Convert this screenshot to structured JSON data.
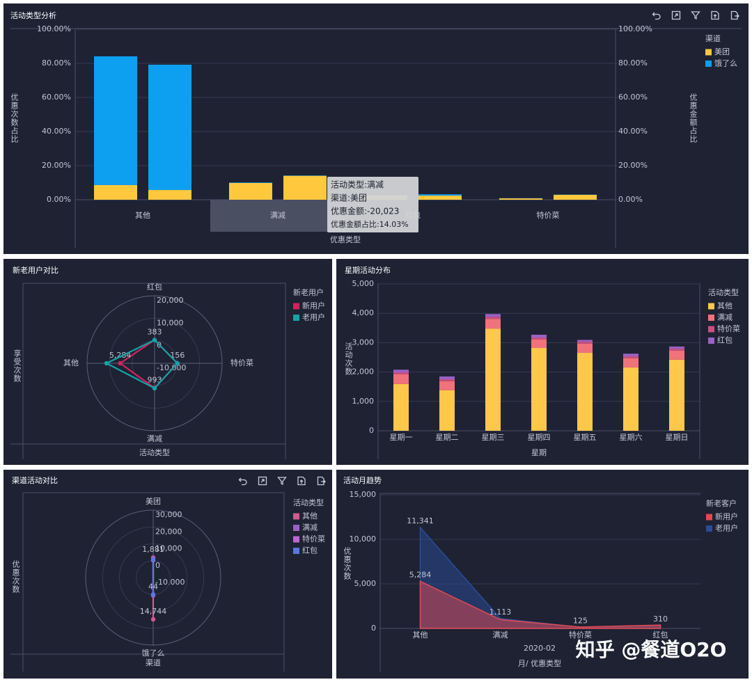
{
  "watermark": "知乎 @餐道O2O",
  "chart_data": [
    {
      "type": "bar",
      "title": "活动类型分析",
      "categories": [
        "其他",
        "满减",
        "红包",
        "特价菜"
      ],
      "x_label": "优惠类型",
      "y_label": "优惠次数占比",
      "y2_label": "优惠金额占比",
      "legend_title": "渠道",
      "series": [
        {
          "name": "美团",
          "color": "#ffc83d",
          "values": [
            8.6,
            9.8,
            2.5,
            0.8
          ],
          "y2_values": [
            5.7,
            14.03,
            2.4,
            2.9
          ]
        },
        {
          "name": "饿了么",
          "color": "#0ea0f0",
          "values": [
            75.5,
            0.3,
            0.3,
            0.1
          ],
          "y2_values": [
            73.5,
            0.2,
            0.8,
            0.1
          ]
        }
      ],
      "ylim": [
        0,
        100
      ],
      "yticks": [
        {
          "value": 0,
          "label": "0.00%"
        },
        {
          "value": 20,
          "label": "20.00%"
        },
        {
          "value": 40,
          "label": "40.00%"
        },
        {
          "value": 60,
          "label": "60.00%"
        },
        {
          "value": 80,
          "label": "80.00%"
        },
        {
          "value": 100,
          "label": "100.00%"
        }
      ],
      "y2lim": [
        0,
        100
      ],
      "y2ticks": [
        {
          "value": 0,
          "label": "0.00%"
        },
        {
          "value": 20,
          "label": "20.00%"
        },
        {
          "value": 40,
          "label": "40.00%"
        },
        {
          "value": 60,
          "label": "60.00%"
        },
        {
          "value": 80,
          "label": "80.00%"
        },
        {
          "value": 100,
          "label": "100.00%"
        }
      ],
      "grid": true,
      "tooltip": [
        "活动类型:满减",
        "渠道:美团",
        "优惠金额:-20,023",
        "优惠金额占比:14.03%"
      ]
    },
    {
      "type": "radar",
      "title": "新老用户对比",
      "categories": [
        "红包",
        "特价菜",
        "满减",
        "其他"
      ],
      "x_label": "活动类型",
      "y_label": "享受次数",
      "legend_title": "新老用户",
      "rlim": [
        -10000,
        20000
      ],
      "rticks": [
        {
          "value": -10000,
          "label": "-10,000"
        },
        0,
        {
          "value": 10000,
          "label": "10,000"
        },
        {
          "value": 20000,
          "label": "20,000"
        }
      ],
      "series": [
        {
          "name": "新用户",
          "color": "#d0245e",
          "values": [
            383,
            156,
            993,
            5284
          ],
          "value_labels": [
            "383",
            "156",
            "993",
            "5,284"
          ]
        },
        {
          "name": "老用户",
          "color": "#14a3a8",
          "values": [
            310,
            125,
            1113,
            11341
          ]
        }
      ]
    },
    {
      "type": "bar",
      "title": "星期活动分布",
      "categories": [
        "星期一",
        "星期二",
        "星期三",
        "星期四",
        "星期五",
        "星期六",
        "星期日"
      ],
      "x_label": "星期",
      "y_label": "活动次数",
      "legend_title": "活动类型",
      "series": [
        {
          "name": "其他",
          "color": "#ffc84a",
          "values": [
            1590,
            1375,
            3480,
            2820,
            2655,
            2155,
            2420
          ]
        },
        {
          "name": "满减",
          "color": "#f0727a",
          "values": [
            330,
            310,
            330,
            285,
            310,
            310,
            310
          ]
        },
        {
          "name": "特价菜",
          "color": "#c9507f",
          "values": [
            70,
            70,
            70,
            70,
            70,
            70,
            70
          ]
        },
        {
          "name": "红包",
          "color": "#9a62c4",
          "values": [
            90,
            95,
            95,
            95,
            60,
            90,
            70
          ]
        }
      ],
      "ylim": [
        0,
        5000
      ],
      "yticks": [
        0,
        {
          "value": 1000,
          "label": "1,000"
        },
        {
          "value": 2000,
          "label": "2,000"
        },
        {
          "value": 3000,
          "label": "3,000"
        },
        {
          "value": 4000,
          "label": "4,000"
        },
        {
          "value": 5000,
          "label": "5,000"
        }
      ],
      "grid": true
    },
    {
      "type": "radar",
      "title": "渠道活动对比",
      "categories": [
        "美团",
        "饿了么"
      ],
      "x_label": "渠道",
      "y_label": "优惠次数",
      "legend_title": "活动类型",
      "rlim": [
        -10000,
        30000
      ],
      "rticks": [
        {
          "value": -10000,
          "label": "-10,000"
        },
        0,
        {
          "value": 10000,
          "label": "10,000"
        },
        {
          "value": 20000,
          "label": "20,000"
        },
        {
          "value": 30000,
          "label": "30,000"
        }
      ],
      "series": [
        {
          "name": "其他",
          "color": "#d35a8e",
          "values": [
            1881,
            14744
          ],
          "value_labels": [
            "1,881",
            "14,744"
          ]
        },
        {
          "name": "满减",
          "color": "#9a62c4",
          "values": [
            1500,
            600
          ]
        },
        {
          "name": "特价菜",
          "color": "#c065d6",
          "values": [
            200,
            80
          ]
        },
        {
          "name": "红包",
          "color": "#5b76e0",
          "values": [
            650,
            44
          ],
          "value_labels": [
            null,
            "44"
          ]
        }
      ]
    },
    {
      "type": "area",
      "title": "活动月趋势",
      "categories": [
        "其他",
        "满减",
        "特价菜",
        "红包"
      ],
      "x_group": "2020-02",
      "x_label": "月/ 优惠类型",
      "y_label": "优惠次数",
      "legend_title": "新老客户",
      "series": [
        {
          "name": "新用户",
          "color": "#e34a4f",
          "values": [
            5284,
            993,
            156,
            383
          ],
          "value_labels": [
            "5,284",
            null,
            null,
            null
          ]
        },
        {
          "name": "老用户",
          "color": "#2a4c9a",
          "values": [
            11341,
            1113,
            125,
            310
          ],
          "value_labels": [
            "11,341",
            "1,113",
            "125",
            "310"
          ]
        }
      ],
      "ylim": [
        0,
        15000
      ],
      "yticks": [
        0,
        {
          "value": 5000,
          "label": "5,000"
        },
        {
          "value": 10000,
          "label": "10,000"
        },
        {
          "value": 15000,
          "label": "15,000"
        }
      ],
      "grid": true
    }
  ]
}
